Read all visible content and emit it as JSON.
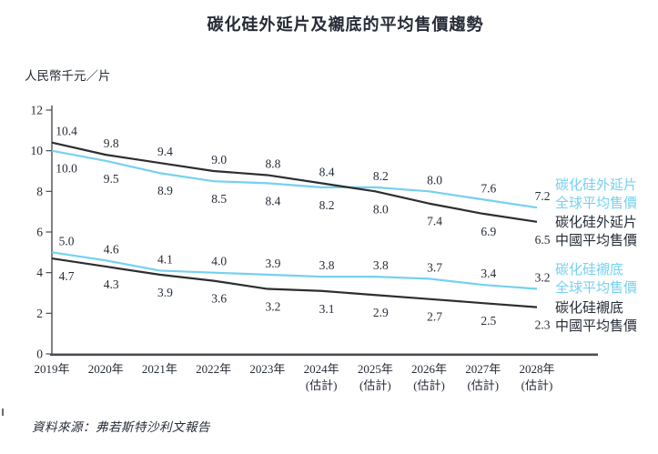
{
  "page": {
    "source": "資料來源：弗若斯特沙利文報告"
  },
  "colors": {
    "global_line": "#75d1ef",
    "china_line": "#2d2e30",
    "text": "#262b36",
    "axis": "#4c4d51"
  },
  "chart_data": {
    "type": "line",
    "title": "碳化硅外延片及襯底的平均售價趨勢",
    "ylabel": "人民幣千元／片",
    "xlabel": "",
    "ylim": [
      0,
      12
    ],
    "yticks": [
      0,
      2,
      4,
      6,
      8,
      10,
      12
    ],
    "grid": false,
    "legend_position": "right",
    "categories": [
      {
        "label": "2019年",
        "note": ""
      },
      {
        "label": "2020年",
        "note": ""
      },
      {
        "label": "2021年",
        "note": ""
      },
      {
        "label": "2022年",
        "note": ""
      },
      {
        "label": "2023年",
        "note": ""
      },
      {
        "label": "2024年",
        "note": "(估計)"
      },
      {
        "label": "2025年",
        "note": "(估計)"
      },
      {
        "label": "2026年",
        "note": "(估計)"
      },
      {
        "label": "2027年",
        "note": "(估計)"
      },
      {
        "label": "2028年",
        "note": "(估計)"
      }
    ],
    "series": [
      {
        "name": "碳化硅外延片全球平均售價",
        "color_key": "global_line",
        "values": [
          10.0,
          9.5,
          8.9,
          8.5,
          8.4,
          8.2,
          8.2,
          8.0,
          7.6,
          7.2
        ]
      },
      {
        "name": "碳化硅外延片中國平均售價",
        "color_key": "china_line",
        "values": [
          10.4,
          9.8,
          9.4,
          9.0,
          8.8,
          8.4,
          8.0,
          7.4,
          6.9,
          6.5
        ]
      },
      {
        "name": "碳化硅襯底全球平均售價",
        "color_key": "global_line",
        "values": [
          5.0,
          4.6,
          4.1,
          4.0,
          3.9,
          3.8,
          3.8,
          3.7,
          3.4,
          3.2
        ]
      },
      {
        "name": "碳化硅襯底中國平均售價",
        "color_key": "china_line",
        "values": [
          4.7,
          4.3,
          3.9,
          3.6,
          3.2,
          3.1,
          2.9,
          2.7,
          2.5,
          2.3
        ]
      }
    ],
    "label_pairs": [
      [
        0,
        1
      ],
      [
        2,
        3
      ]
    ]
  },
  "legend": {
    "entries": [
      {
        "line1": "碳化硅外延片",
        "line2": "全球平均售價",
        "kind": "global"
      },
      {
        "line1": "碳化硅外延片",
        "line2": "中國平均售價",
        "kind": "china"
      },
      {
        "line1": "碳化硅襯底",
        "line2": "全球平均售價",
        "kind": "global"
      },
      {
        "line1": "碳化硅襯底",
        "line2": "中國平均售價",
        "kind": "china"
      }
    ]
  }
}
